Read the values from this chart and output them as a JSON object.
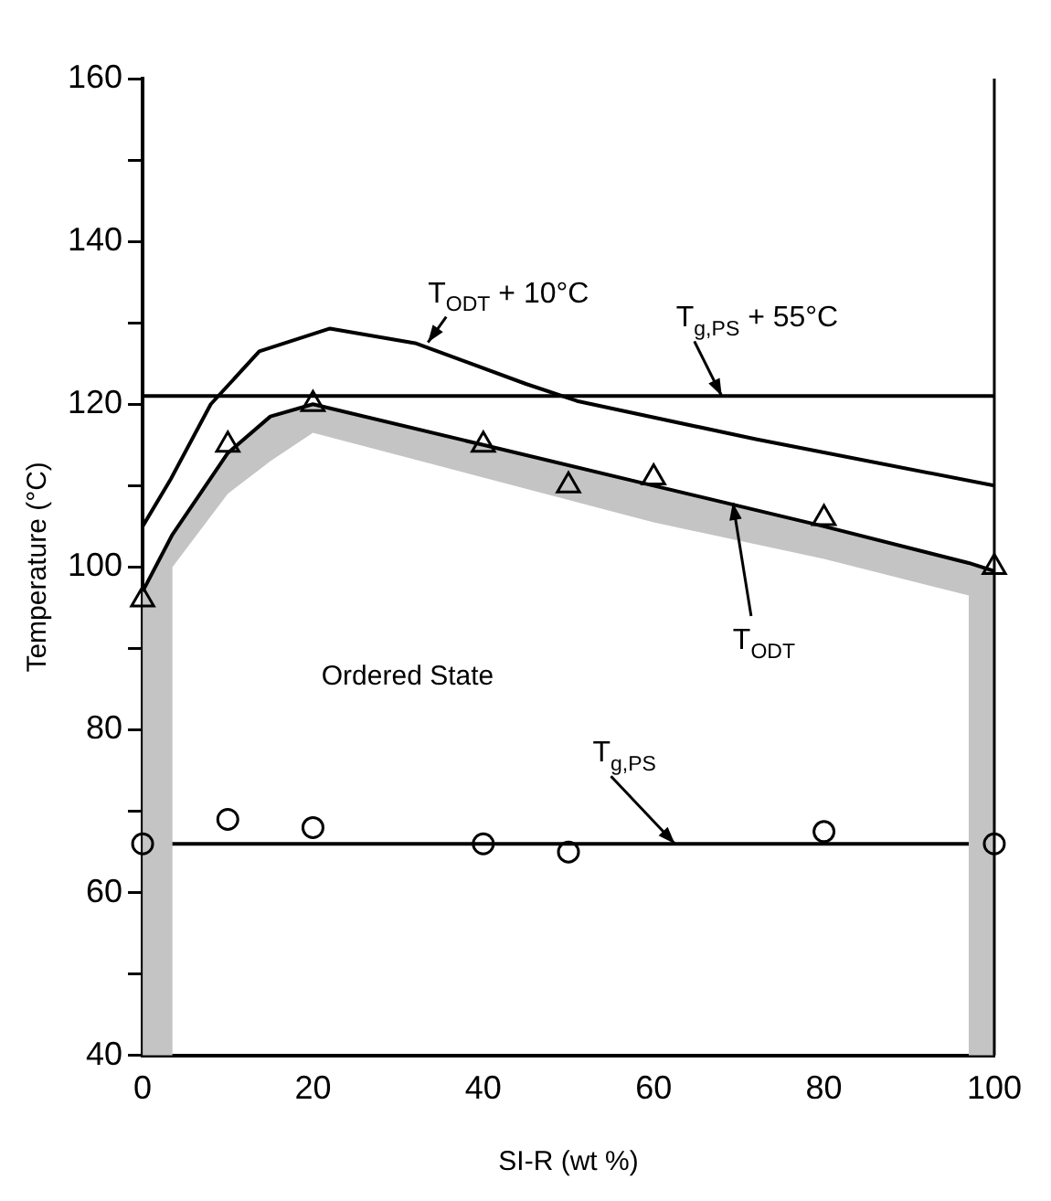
{
  "chart_data": {
    "type": "scatter",
    "xlabel": "SI-R (wt %)",
    "ylabel": "Temperature (°C)",
    "xlim": [
      0,
      100
    ],
    "xticks": [
      0,
      20,
      40,
      60,
      80,
      100
    ],
    "ylim": [
      40,
      160
    ],
    "yticks": [
      40,
      {
        "value": 50,
        "label": null
      },
      60,
      {
        "value": 70,
        "label": null
      },
      80,
      {
        "value": 90,
        "label": null
      },
      100,
      {
        "value": 110,
        "label": null
      },
      120,
      {
        "value": 130,
        "label": null
      },
      140,
      {
        "value": 150,
        "label": null
      },
      160
    ],
    "grid": false,
    "legend": false,
    "series": [
      {
        "type": "line",
        "color": "#000000",
        "line_style": "solid",
        "marker": "none",
        "x": [
          0,
          3.5,
          3.5,
          10,
          15,
          20,
          40,
          60,
          80,
          97,
          97,
          100
        ],
        "values": [
          97,
          104,
          104,
          114,
          118.5,
          120,
          115,
          110,
          105,
          100.5,
          100.5,
          99.5
        ],
        "upper": [
          97,
          104,
          104,
          114,
          118.5,
          120,
          115,
          110,
          105,
          100.5,
          100.5,
          99.5
        ],
        "lower": [
          40,
          40,
          100,
          109,
          113,
          116.5,
          111,
          105.5,
          101,
          96.5,
          40,
          40
        ]
      },
      {
        "type": "line",
        "color": "#000000",
        "line_style": "solid",
        "marker": "none",
        "x": [
          0,
          3.3,
          8,
          13.7,
          22,
          32,
          45,
          51,
          72,
          100
        ],
        "values": [
          105,
          110.8,
          120,
          126.5,
          129.3,
          127.5,
          122.5,
          120.4,
          115.7,
          110
        ]
      },
      {
        "color": "#000000",
        "marker": "triangle",
        "x": [
          0,
          10,
          20,
          40,
          50,
          60,
          80,
          100
        ],
        "values": [
          96,
          115,
          120,
          115,
          110,
          111,
          106,
          100
        ]
      },
      {
        "color": "#000000",
        "marker": "circle",
        "x": [
          0,
          10,
          20,
          40,
          50,
          80,
          100
        ],
        "values": [
          66,
          69,
          68,
          66,
          65,
          67.5,
          66
        ]
      }
    ],
    "ref_lines": [
      {
        "axis": "y",
        "value": 121,
        "color": "#000000"
      },
      {
        "axis": "y",
        "value": 66,
        "color": "#000000"
      }
    ],
    "annotations": [
      {
        "text": "T$_{ODT}$ + 10°C",
        "x": 33.5,
        "y": 127.6
      },
      {
        "text": "T$_{g,PS}$ + 55°C",
        "x": 68,
        "y": 121
      },
      {
        "text": "T$_{ODT}$",
        "x": 69.3,
        "y": 107.9
      },
      {
        "text": "T$_{g,PS}$",
        "x": 62.5,
        "y": 66
      },
      "Ordered State"
    ]
  }
}
